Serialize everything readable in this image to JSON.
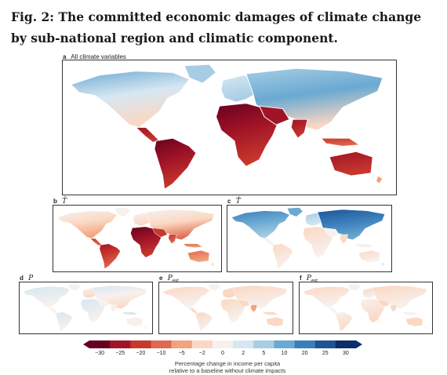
{
  "figure": {
    "title": "Fig. 2: The committed economic damages of climate change by sub-national region and climatic component."
  },
  "panels": [
    {
      "id": "a",
      "letter": "a",
      "label": "All climate variables",
      "symbol": ""
    },
    {
      "id": "b",
      "letter": "b",
      "label": "",
      "symbol": "T̄"
    },
    {
      "id": "c",
      "letter": "c",
      "label": "",
      "symbol": "T̃"
    },
    {
      "id": "d",
      "letter": "d",
      "label": "",
      "symbol": "P"
    },
    {
      "id": "e",
      "letter": "e",
      "label": "",
      "symbol": "P",
      "sub": "ext"
    },
    {
      "id": "f",
      "letter": "f",
      "label": "",
      "symbol": "P",
      "sub": "ext"
    }
  ],
  "colorbar": {
    "ticks": [
      "−30",
      "−25",
      "−20",
      "−10",
      "−5",
      "−2",
      "0",
      "2",
      "5",
      "10",
      "20",
      "25",
      "30"
    ],
    "colors": [
      "#67001f",
      "#a11427",
      "#c8382d",
      "#e0694f",
      "#f2a37e",
      "#fbd8c3",
      "#f7f1ee",
      "#d6e7f2",
      "#a6cde4",
      "#6aa9d2",
      "#3b7fba",
      "#1d5496",
      "#0b2f6b"
    ],
    "caption_line1": "Percentage change in income per capita",
    "caption_line2": "relative to a baseline without climate impacts"
  }
}
